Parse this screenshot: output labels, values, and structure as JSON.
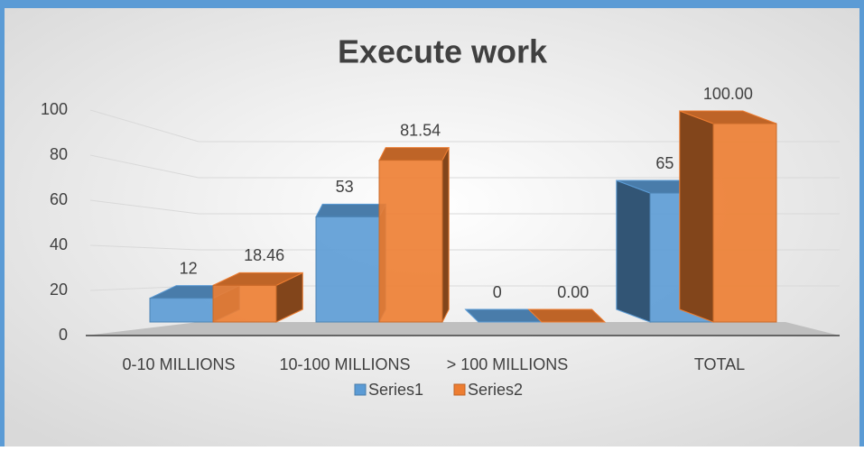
{
  "chart_data": {
    "type": "bar3d",
    "title": "Execute work",
    "categories": [
      "0-10 MILLIONS",
      "10-100 MILLIONS",
      "> 100 MILLIONS",
      "TOTAL"
    ],
    "series": [
      {
        "name": "Series1",
        "color": "#5b9bd5",
        "values": [
          12,
          53,
          0,
          65
        ]
      },
      {
        "name": "Series2",
        "color": "#ed7d31",
        "values": [
          18.46,
          81.54,
          0,
          100
        ],
        "value_labels": [
          "18.46",
          "81.54",
          "0.00",
          "100.00"
        ]
      }
    ],
    "ylim": [
      0,
      100
    ],
    "yticks": [
      0,
      20,
      40,
      60,
      80,
      100
    ],
    "grid": true,
    "legend": "bottom"
  }
}
